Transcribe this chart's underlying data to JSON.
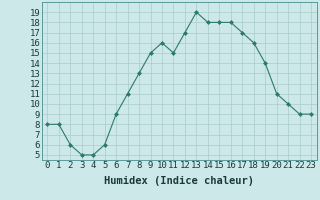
{
  "x": [
    0,
    1,
    2,
    3,
    4,
    5,
    6,
    7,
    8,
    9,
    10,
    11,
    12,
    13,
    14,
    15,
    16,
    17,
    18,
    19,
    20,
    21,
    22,
    23
  ],
  "y": [
    8,
    8,
    6,
    5,
    5,
    6,
    9,
    11,
    13,
    15,
    16,
    15,
    17,
    19,
    18,
    18,
    18,
    17,
    16,
    14,
    11,
    10,
    9,
    9
  ],
  "xlabel": "Humidex (Indice chaleur)",
  "xlim": [
    -0.5,
    23.5
  ],
  "ylim": [
    4.5,
    20
  ],
  "yticks": [
    5,
    6,
    7,
    8,
    9,
    10,
    11,
    12,
    13,
    14,
    15,
    16,
    17,
    18,
    19
  ],
  "xticks": [
    0,
    1,
    2,
    3,
    4,
    5,
    6,
    7,
    8,
    9,
    10,
    11,
    12,
    13,
    14,
    15,
    16,
    17,
    18,
    19,
    20,
    21,
    22,
    23
  ],
  "line_color": "#2d7a6a",
  "marker_color": "#2d7a6a",
  "bg_color": "#cce8e8",
  "grid_color": "#aacccc",
  "label_fontsize": 7.5,
  "tick_fontsize": 6.5
}
